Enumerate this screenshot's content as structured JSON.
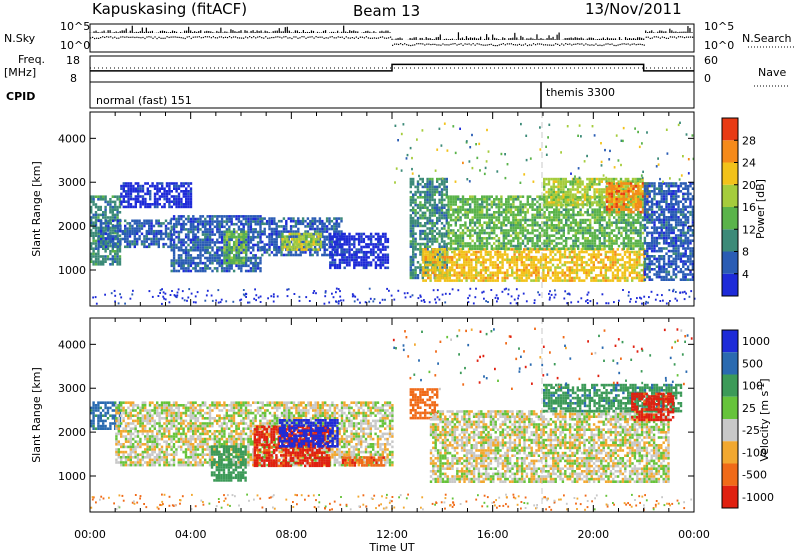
{
  "header": {
    "station": "Kapuskasing (fitACF)",
    "beam": "Beam 13",
    "date": "13/Nov/2011"
  },
  "status": {
    "nsky_label": "N.Sky",
    "nsky_ticks": [
      "10^5",
      "10^0"
    ],
    "nsearch_label": "N.Search",
    "nsearch_ticks": [
      "10^5",
      "10^0"
    ],
    "freq_label": "Freq.",
    "freq_unit": "[MHz]",
    "freq_ticks": [
      "18",
      "8"
    ],
    "nave_label": "Nave",
    "nave_ticks": [
      "60",
      "0"
    ],
    "cpid_label": "CPID",
    "cpid_modes": [
      {
        "name": "normal (fast) 151",
        "start_hour": 0
      },
      {
        "name": "themis 3300",
        "start_hour": 18
      }
    ]
  },
  "axes": {
    "xlabel": "Time UT",
    "x_ticks": [
      "00:00",
      "04:00",
      "08:00",
      "12:00",
      "16:00",
      "20:00",
      "00:00"
    ],
    "ylabel": "Slant Range [km]",
    "y_ticks": [
      "1000",
      "2000",
      "3000",
      "4000"
    ]
  },
  "power_colorbar": {
    "label": "Power [dB]",
    "ticks": [
      "4",
      "8",
      "12",
      "16",
      "20",
      "24",
      "28"
    ],
    "colors": [
      "#1e2bd8",
      "#2a5cb4",
      "#3c8a78",
      "#5ab34a",
      "#a5cc3c",
      "#f2c21a",
      "#f58a1a",
      "#e83a14"
    ]
  },
  "velocity_colorbar": {
    "label": "Velocity [m s",
    "label_sup": "-1",
    "label_end": "]",
    "ticks": [
      "1000",
      "500",
      "100",
      "25",
      "-25",
      "-100",
      "-500",
      "-1000"
    ],
    "colors": [
      "#1e2bd8",
      "#2a6ab0",
      "#3c9a58",
      "#66c33a",
      "#c8c8c8",
      "#f2a830",
      "#f06a18",
      "#e02010"
    ]
  },
  "chart_data": {
    "type": "heatmap",
    "x_range_hours": [
      0,
      24
    ],
    "y_range_km": [
      180,
      4600
    ],
    "power_regions": [
      {
        "t0": 0.0,
        "t1": 1.2,
        "r0": 1150,
        "r1": 2700,
        "level": 12
      },
      {
        "t0": 0.3,
        "t1": 3.2,
        "r0": 1550,
        "r1": 2150,
        "level": 8
      },
      {
        "t0": 1.2,
        "t1": 4.0,
        "r0": 2450,
        "r1": 3000,
        "level": 4
      },
      {
        "t0": 3.2,
        "t1": 6.8,
        "r0": 950,
        "r1": 2250,
        "level": 8
      },
      {
        "t0": 5.3,
        "t1": 6.2,
        "r0": 1150,
        "r1": 1900,
        "level": 16
      },
      {
        "t0": 6.8,
        "t1": 10.0,
        "r0": 1350,
        "r1": 2200,
        "level": 8
      },
      {
        "t0": 7.6,
        "t1": 9.2,
        "r0": 1450,
        "r1": 1850,
        "level": 20
      },
      {
        "t0": 9.5,
        "t1": 11.8,
        "r0": 1050,
        "r1": 1850,
        "level": 4
      },
      {
        "t0": 12.7,
        "t1": 14.2,
        "r0": 800,
        "r1": 3100,
        "level": 12
      },
      {
        "t0": 13.2,
        "t1": 22.0,
        "r0": 750,
        "r1": 1500,
        "level": 22
      },
      {
        "t0": 14.2,
        "t1": 22.0,
        "r0": 1500,
        "r1": 2700,
        "level": 14
      },
      {
        "t0": 18.0,
        "t1": 22.0,
        "r0": 2500,
        "r1": 3100,
        "level": 18
      },
      {
        "t0": 20.5,
        "t1": 22.2,
        "r0": 2300,
        "r1": 3000,
        "level": 26
      },
      {
        "t0": 22.0,
        "t1": 24.0,
        "r0": 800,
        "r1": 3000,
        "level": 6
      }
    ],
    "velocity_regions": [
      {
        "t0": 0.0,
        "t1": 1.2,
        "r0": 2100,
        "r1": 2700,
        "velocity": 300
      },
      {
        "t0": 1.0,
        "t1": 12.0,
        "r0": 1250,
        "r1": 2700,
        "velocity": 0
      },
      {
        "t0": 4.8,
        "t1": 6.2,
        "r0": 900,
        "r1": 1700,
        "velocity": 150
      },
      {
        "t0": 6.5,
        "t1": 9.5,
        "r0": 1250,
        "r1": 2150,
        "velocity": -300
      },
      {
        "t0": 7.5,
        "t1": 9.8,
        "r0": 1700,
        "r1": 2300,
        "velocity": 700
      },
      {
        "t0": 10.0,
        "t1": 11.7,
        "r0": 1250,
        "r1": 1450,
        "velocity": -200
      },
      {
        "t0": 12.7,
        "t1": 13.8,
        "r0": 2300,
        "r1": 3000,
        "velocity": -150
      },
      {
        "t0": 13.5,
        "t1": 23.0,
        "r0": 900,
        "r1": 2500,
        "velocity": 0
      },
      {
        "t0": 18.0,
        "t1": 23.5,
        "r0": 2500,
        "r1": 3100,
        "velocity": 200
      },
      {
        "t0": 21.5,
        "t1": 23.2,
        "r0": 2300,
        "r1": 2900,
        "velocity": -300
      }
    ],
    "frequency_mhz": [
      {
        "t0": 0,
        "t1": 12,
        "value": 12
      },
      {
        "t0": 12,
        "t1": 22,
        "value": 15.5
      },
      {
        "t0": 22,
        "t1": 24,
        "value": 12
      }
    ]
  }
}
